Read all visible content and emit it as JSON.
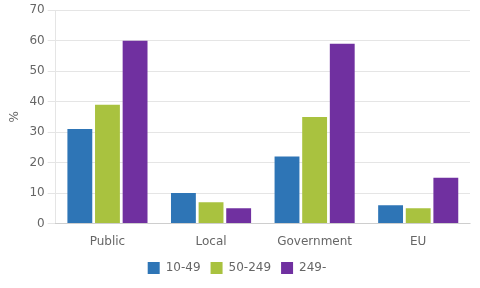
{
  "chart_data": {
    "type": "bar",
    "categories": [
      "Public",
      "Local",
      "Government",
      "EU"
    ],
    "series": [
      {
        "name": "10-49",
        "color": "#2e75b6",
        "values": [
          31,
          10,
          22,
          6
        ]
      },
      {
        "name": "50-249",
        "color": "#a9c23f",
        "values": [
          39,
          7,
          35,
          5
        ]
      },
      {
        "name": "249-",
        "color": "#7030a0",
        "values": [
          60,
          5,
          59,
          15
        ]
      }
    ],
    "ylabel": "%",
    "ylim": [
      0,
      70
    ],
    "yticks": [
      0,
      10,
      20,
      30,
      40,
      50,
      60,
      70
    ],
    "grid": true,
    "legend": "bottom"
  }
}
